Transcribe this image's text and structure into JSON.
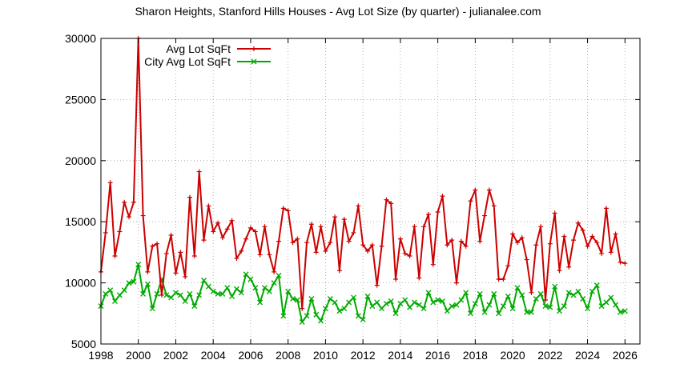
{
  "chart_data": {
    "type": "line",
    "title": "Sharon Heights, Stanford Hills Houses - Avg Lot Size (by quarter) - julianalee.com",
    "xlabel": "",
    "ylabel": "",
    "xlim": [
      1998,
      2026.8
    ],
    "ylim": [
      5000,
      30000
    ],
    "xticks": [
      "1998",
      "2000",
      "2002",
      "2004",
      "2006",
      "2008",
      "2010",
      "2012",
      "2014",
      "2016",
      "2018",
      "2020",
      "2022",
      "2024",
      "2026"
    ],
    "yticks": [
      "5000",
      "10000",
      "15000",
      "20000",
      "25000",
      "30000"
    ],
    "grid": true,
    "legend_position": "top-left",
    "series": [
      {
        "name": "Avg Lot SqFt",
        "color": "#cc0000",
        "marker": "plus",
        "x": [
          1998.0,
          1998.25,
          1998.5,
          1998.75,
          1999.0,
          1999.25,
          1999.5,
          1999.75,
          2000.0,
          2000.25,
          2000.5,
          2000.75,
          2001.0,
          2001.25,
          2001.5,
          2001.75,
          2002.0,
          2002.25,
          2002.5,
          2002.75,
          2003.0,
          2003.25,
          2003.5,
          2003.75,
          2004.0,
          2004.25,
          2004.5,
          2004.75,
          2005.0,
          2005.25,
          2005.5,
          2005.75,
          2006.0,
          2006.25,
          2006.5,
          2006.75,
          2007.0,
          2007.25,
          2007.5,
          2007.75,
          2008.0,
          2008.25,
          2008.5,
          2008.75,
          2009.0,
          2009.25,
          2009.5,
          2009.75,
          2010.0,
          2010.25,
          2010.5,
          2010.75,
          2011.0,
          2011.25,
          2011.5,
          2011.75,
          2012.0,
          2012.25,
          2012.5,
          2012.75,
          2013.0,
          2013.25,
          2013.5,
          2013.75,
          2014.0,
          2014.25,
          2014.5,
          2014.75,
          2015.0,
          2015.25,
          2015.5,
          2015.75,
          2016.0,
          2016.25,
          2016.5,
          2016.75,
          2017.0,
          2017.25,
          2017.5,
          2017.75,
          2018.0,
          2018.25,
          2018.5,
          2018.75,
          2019.0,
          2019.25,
          2019.5,
          2019.75,
          2020.0,
          2020.25,
          2020.5,
          2020.75,
          2021.0,
          2021.25,
          2021.5,
          2021.75,
          2022.0,
          2022.25,
          2022.5,
          2022.75,
          2023.0,
          2023.25,
          2023.5,
          2023.75,
          2024.0,
          2024.25,
          2024.5,
          2024.75,
          2025.0,
          2025.25,
          2025.5,
          2025.75,
          2026.0
        ],
        "y": [
          10900,
          14100,
          18200,
          12200,
          14200,
          16600,
          15400,
          16600,
          30000,
          15500,
          10900,
          13000,
          13200,
          9000,
          12400,
          13900,
          10800,
          12500,
          10500,
          17000,
          12200,
          19100,
          13500,
          16300,
          14200,
          14900,
          13700,
          14400,
          15100,
          12000,
          12600,
          13600,
          14500,
          14200,
          12300,
          14600,
          12300,
          10900,
          13400,
          16100,
          15900,
          13300,
          13600,
          7900,
          13300,
          14800,
          12500,
          14600,
          12600,
          13300,
          15400,
          11000,
          15200,
          13400,
          14100,
          16300,
          13100,
          12600,
          13100,
          9800,
          13000,
          16800,
          16500,
          10300,
          13600,
          12400,
          12200,
          14600,
          10400,
          14600,
          15600,
          11500,
          15800,
          17100,
          13100,
          13500,
          10000,
          13400,
          13000,
          16700,
          17600,
          13400,
          15500,
          17600,
          16300,
          10300,
          10300,
          11400,
          14000,
          13300,
          13700,
          11900,
          9200,
          13100,
          14600,
          8600,
          13200,
          15700,
          11000,
          13800,
          11300,
          13500,
          14900,
          14300,
          13000,
          13800,
          13300,
          12400,
          16100,
          12500,
          14000,
          11700,
          11600
        ]
      },
      {
        "name": "City Avg Lot SqFt",
        "color": "#00aa00",
        "marker": "cross",
        "x": [
          1998.0,
          1998.25,
          1998.5,
          1998.75,
          1999.0,
          1999.25,
          1999.5,
          1999.75,
          2000.0,
          2000.25,
          2000.5,
          2000.75,
          2001.0,
          2001.25,
          2001.5,
          2001.75,
          2002.0,
          2002.25,
          2002.5,
          2002.75,
          2003.0,
          2003.25,
          2003.5,
          2003.75,
          2004.0,
          2004.25,
          2004.5,
          2004.75,
          2005.0,
          2005.25,
          2005.5,
          2005.75,
          2006.0,
          2006.25,
          2006.5,
          2006.75,
          2007.0,
          2007.25,
          2007.5,
          2007.75,
          2008.0,
          2008.25,
          2008.5,
          2008.75,
          2009.0,
          2009.25,
          2009.5,
          2009.75,
          2010.0,
          2010.25,
          2010.5,
          2010.75,
          2011.0,
          2011.25,
          2011.5,
          2011.75,
          2012.0,
          2012.25,
          2012.5,
          2012.75,
          2013.0,
          2013.25,
          2013.5,
          2013.75,
          2014.0,
          2014.25,
          2014.5,
          2014.75,
          2015.0,
          2015.25,
          2015.5,
          2015.75,
          2016.0,
          2016.25,
          2016.5,
          2016.75,
          2017.0,
          2017.25,
          2017.5,
          2017.75,
          2018.0,
          2018.25,
          2018.5,
          2018.75,
          2019.0,
          2019.25,
          2019.5,
          2019.75,
          2020.0,
          2020.25,
          2020.5,
          2020.75,
          2021.0,
          2021.25,
          2021.5,
          2021.75,
          2022.0,
          2022.25,
          2022.5,
          2022.75,
          2023.0,
          2023.25,
          2023.5,
          2023.75,
          2024.0,
          2024.25,
          2024.5,
          2024.75,
          2025.0,
          2025.25,
          2025.5,
          2025.75,
          2026.0
        ],
        "y": [
          8100,
          9100,
          9400,
          8500,
          9000,
          9400,
          10000,
          10100,
          11500,
          9100,
          9900,
          7900,
          9100,
          10300,
          9000,
          8800,
          9200,
          9000,
          8500,
          9100,
          8100,
          9000,
          10200,
          9700,
          9300,
          9100,
          9100,
          9600,
          8900,
          9500,
          9200,
          10700,
          10300,
          9600,
          8400,
          9600,
          9300,
          10000,
          10600,
          7300,
          9300,
          8700,
          8600,
          6800,
          7300,
          8700,
          7400,
          6900,
          7900,
          8700,
          8400,
          7700,
          7900,
          8400,
          8800,
          7300,
          7000,
          8900,
          8100,
          8400,
          7900,
          8300,
          8500,
          7500,
          8300,
          8600,
          8000,
          8400,
          8200,
          7900,
          9200,
          8400,
          8600,
          8500,
          7700,
          8100,
          8200,
          8600,
          9200,
          7500,
          8300,
          9100,
          7600,
          8200,
          9100,
          7500,
          8100,
          8900,
          7900,
          9600,
          9000,
          7600,
          7600,
          8700,
          9100,
          8100,
          8000,
          9700,
          7700,
          8100,
          9200,
          9000,
          9300,
          8700,
          7900,
          9300,
          9800,
          8100,
          8400,
          8800,
          8200,
          7600,
          7700
        ]
      }
    ]
  }
}
